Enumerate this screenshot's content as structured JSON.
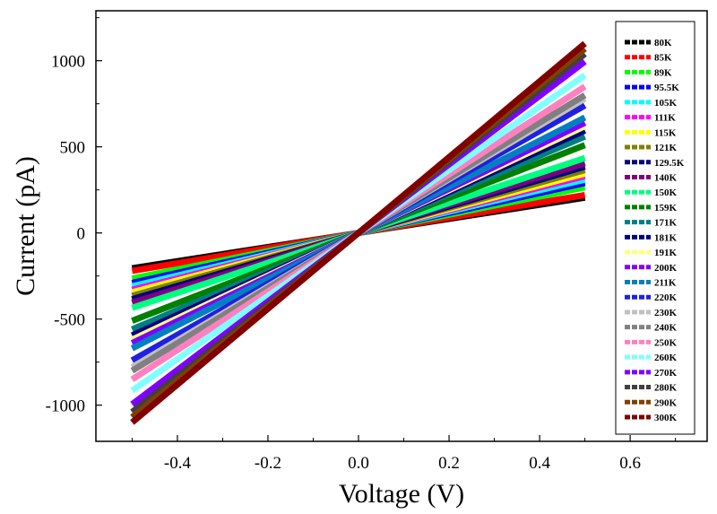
{
  "chart_data": {
    "type": "line",
    "title": "",
    "xlabel": "Voltage (V)",
    "ylabel": "Current (pA)",
    "xlim": [
      -0.58,
      0.77
    ],
    "ylim": [
      -1210,
      1290
    ],
    "xticks": [
      -0.4,
      -0.2,
      0.0,
      0.2,
      0.4,
      0.6
    ],
    "xtick_labels": [
      "-0.4",
      "-0.2",
      "0.0",
      "0.2",
      "0.4",
      "0.6"
    ],
    "yticks": [
      -1000,
      -500,
      0,
      500,
      1000
    ],
    "ytick_labels": [
      "-1000",
      "-500",
      "0",
      "500",
      "1000"
    ],
    "legend_position": "top-right",
    "x": [
      -0.5,
      0.5
    ],
    "series": [
      {
        "name": "80K",
        "color": "#000000",
        "values": [
          -205,
          205
        ]
      },
      {
        "name": "85K",
        "color": "#ff0000",
        "values": [
          -220,
          220
        ]
      },
      {
        "name": "89K",
        "color": "#00ff00",
        "values": [
          -265,
          265
        ]
      },
      {
        "name": "95.5K",
        "color": "#0000ff",
        "values": [
          -290,
          290
        ]
      },
      {
        "name": "105K",
        "color": "#00ffff",
        "values": [
          -310,
          310
        ]
      },
      {
        "name": "111K",
        "color": "#ff00ff",
        "values": [
          -330,
          330
        ]
      },
      {
        "name": "115K",
        "color": "#ffff00",
        "values": [
          -345,
          345
        ]
      },
      {
        "name": "121K",
        "color": "#808000",
        "values": [
          -365,
          365
        ]
      },
      {
        "name": "129.5K",
        "color": "#000080",
        "values": [
          -385,
          385
        ]
      },
      {
        "name": "140K",
        "color": "#800080",
        "values": [
          -405,
          405
        ]
      },
      {
        "name": "150K",
        "color": "#00ff80",
        "values": [
          -435,
          435
        ]
      },
      {
        "name": "159K",
        "color": "#008000",
        "values": [
          -510,
          510
        ]
      },
      {
        "name": "171K",
        "color": "#008080",
        "values": [
          -560,
          560
        ]
      },
      {
        "name": "181K",
        "color": "#000080",
        "values": [
          -595,
          595
        ]
      },
      {
        "name": "191K",
        "color": "#ffff80",
        "values": [
          -620,
          620
        ]
      },
      {
        "name": "200K",
        "color": "#8000ff",
        "values": [
          -640,
          640
        ]
      },
      {
        "name": "211K",
        "color": "#0080c0",
        "values": [
          -670,
          670
        ]
      },
      {
        "name": "220K",
        "color": "#2020e0",
        "values": [
          -740,
          740
        ]
      },
      {
        "name": "230K",
        "color": "#c0c0c0",
        "values": [
          -780,
          780
        ]
      },
      {
        "name": "240K",
        "color": "#808080",
        "values": [
          -800,
          800
        ]
      },
      {
        "name": "250K",
        "color": "#ff80c0",
        "values": [
          -850,
          850
        ]
      },
      {
        "name": "260K",
        "color": "#80ffff",
        "values": [
          -915,
          915
        ]
      },
      {
        "name": "270K",
        "color": "#8000ff",
        "values": [
          -995,
          995
        ]
      },
      {
        "name": "280K",
        "color": "#404040",
        "values": [
          -1040,
          1040
        ]
      },
      {
        "name": "290K",
        "color": "#804000",
        "values": [
          -1070,
          1070
        ]
      },
      {
        "name": "300K",
        "color": "#800000",
        "values": [
          -1100,
          1100
        ]
      }
    ]
  }
}
